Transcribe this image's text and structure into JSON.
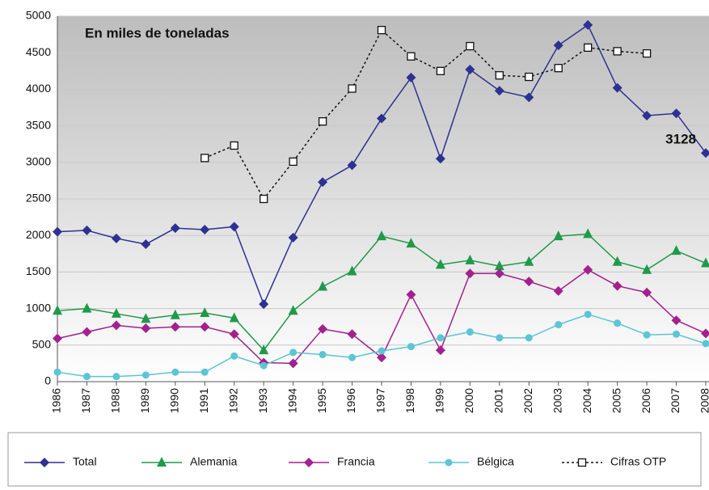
{
  "chart_data": {
    "type": "line",
    "annotation": "En miles de toneladas",
    "categories": [
      "1986",
      "1987",
      "1988",
      "1989",
      "1990",
      "1991",
      "1992",
      "1993",
      "1994",
      "1995",
      "1996",
      "1997",
      "1998",
      "1999",
      "2000",
      "2001",
      "2002",
      "2003",
      "2004",
      "2005",
      "2006",
      "2007",
      "2008"
    ],
    "ylim": [
      0,
      5000
    ],
    "yticks": [
      0,
      500,
      1000,
      1500,
      2000,
      2500,
      3000,
      3500,
      4000,
      4500,
      5000
    ],
    "grid": true,
    "legend": "bottom",
    "series": [
      {
        "name": "Total",
        "color": "#2e3192",
        "marker": "diamond",
        "dash": "solid",
        "values": [
          2050,
          2070,
          1960,
          1880,
          2100,
          2080,
          2120,
          1060,
          1970,
          2730,
          2960,
          3600,
          4160,
          3050,
          4270,
          3980,
          3890,
          4600,
          4880,
          4020,
          3640,
          3670,
          3128
        ],
        "value_labels": [
          null,
          null,
          null,
          null,
          null,
          null,
          null,
          null,
          null,
          null,
          null,
          null,
          null,
          null,
          null,
          null,
          null,
          null,
          null,
          null,
          null,
          null,
          "3128"
        ]
      },
      {
        "name": "Alemania",
        "color": "#1f9a4a",
        "marker": "triangle",
        "dash": "solid",
        "values": [
          970,
          1000,
          930,
          860,
          910,
          940,
          870,
          430,
          970,
          1300,
          1510,
          1990,
          1890,
          1600,
          1660,
          1580,
          1640,
          1990,
          2020,
          1640,
          1530,
          1790,
          1620
        ]
      },
      {
        "name": "Francia",
        "color": "#a3218e",
        "marker": "diamond",
        "dash": "solid",
        "values": [
          590,
          680,
          770,
          730,
          750,
          750,
          650,
          260,
          250,
          720,
          650,
          330,
          1190,
          430,
          1480,
          1480,
          1370,
          1240,
          1530,
          1310,
          1220,
          840,
          660
        ]
      },
      {
        "name": "Bélgica",
        "color": "#5bc5d4",
        "marker": "circle",
        "dash": "solid",
        "values": [
          130,
          70,
          70,
          90,
          130,
          130,
          350,
          220,
          400,
          370,
          330,
          420,
          480,
          600,
          680,
          600,
          600,
          780,
          920,
          800,
          640,
          650,
          520
        ]
      },
      {
        "name": "Cifras OTP",
        "color": "#111111",
        "marker": "square",
        "dash": "dotted",
        "values": [
          null,
          null,
          null,
          null,
          null,
          3060,
          3230,
          2500,
          3010,
          3560,
          4010,
          4810,
          4450,
          4250,
          4590,
          4190,
          4170,
          4290,
          4570,
          4520,
          4490,
          null,
          null
        ]
      }
    ]
  }
}
